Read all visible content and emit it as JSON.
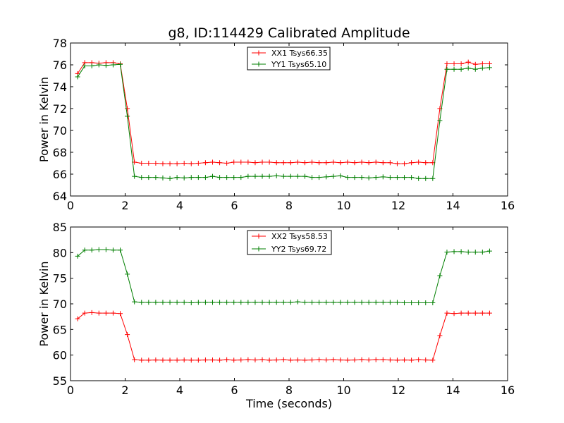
{
  "title": "g8, ID:114429 Calibrated Amplitude",
  "colors": {
    "red": "#ff0000",
    "green": "#007f00"
  },
  "chart_data": [
    {
      "type": "line",
      "title": "g8, ID:114429 Calibrated Amplitude",
      "xlabel": "",
      "ylabel": "Power in Kelvin",
      "xlim": [
        0,
        16
      ],
      "ylim": [
        64,
        78
      ],
      "xticks": [
        0,
        2,
        4,
        6,
        8,
        10,
        12,
        14,
        16
      ],
      "yticks": [
        64,
        66,
        68,
        70,
        72,
        74,
        76,
        78
      ],
      "x_tick_labels": [
        "0",
        "2",
        "4",
        "6",
        "8",
        "10",
        "12",
        "14",
        "16"
      ],
      "y_tick_labels": [
        "64",
        "66",
        "68",
        "70",
        "72",
        "74",
        "76",
        "78"
      ],
      "legend_position": "top-center",
      "grid": false,
      "x": [
        0.26,
        0.52,
        0.78,
        1.04,
        1.3,
        1.56,
        1.82,
        2.08,
        2.34,
        2.6,
        2.86,
        3.12,
        3.38,
        3.64,
        3.9,
        4.16,
        4.42,
        4.68,
        4.94,
        5.2,
        5.46,
        5.72,
        5.98,
        6.24,
        6.5,
        6.76,
        7.02,
        7.28,
        7.54,
        7.8,
        8.06,
        8.32,
        8.58,
        8.84,
        9.1,
        9.36,
        9.62,
        9.88,
        10.14,
        10.4,
        10.66,
        10.92,
        11.18,
        11.44,
        11.7,
        11.96,
        12.22,
        12.48,
        12.74,
        13.0,
        13.26,
        13.52,
        13.78,
        14.04,
        14.3,
        14.56,
        14.82,
        15.08,
        15.34
      ],
      "series": [
        {
          "name": "XX1 Tsys66.35",
          "color": "#ff0000",
          "values": [
            75.2,
            76.2,
            76.2,
            76.15,
            76.2,
            76.2,
            76.1,
            72.0,
            67.1,
            67.0,
            67.0,
            67.0,
            66.95,
            66.95,
            66.95,
            67.0,
            66.95,
            67.0,
            67.05,
            67.1,
            67.05,
            67.0,
            67.1,
            67.1,
            67.1,
            67.05,
            67.1,
            67.1,
            67.05,
            67.05,
            67.05,
            67.1,
            67.05,
            67.1,
            67.05,
            67.05,
            67.1,
            67.05,
            67.1,
            67.05,
            67.1,
            67.05,
            67.1,
            67.05,
            67.05,
            66.95,
            66.95,
            67.05,
            67.1,
            67.05,
            67.05,
            72.0,
            76.1,
            76.1,
            76.1,
            76.25,
            76.05,
            76.1,
            76.1
          ]
        },
        {
          "name": "YY1 Tsys65.10",
          "color": "#007f00",
          "values": [
            74.9,
            75.9,
            75.9,
            76.0,
            75.95,
            76.0,
            76.05,
            71.3,
            65.8,
            65.7,
            65.7,
            65.7,
            65.65,
            65.6,
            65.7,
            65.65,
            65.7,
            65.7,
            65.7,
            65.8,
            65.7,
            65.7,
            65.7,
            65.7,
            65.8,
            65.8,
            65.8,
            65.8,
            65.85,
            65.8,
            65.8,
            65.8,
            65.8,
            65.7,
            65.7,
            65.75,
            65.8,
            65.85,
            65.7,
            65.7,
            65.7,
            65.65,
            65.7,
            65.75,
            65.7,
            65.7,
            65.7,
            65.7,
            65.6,
            65.6,
            65.6,
            70.9,
            75.6,
            75.6,
            75.6,
            75.7,
            75.6,
            75.7,
            75.75
          ]
        }
      ]
    },
    {
      "type": "line",
      "title": "",
      "xlabel": "Time (seconds)",
      "ylabel": "Power in Kelvin",
      "xlim": [
        0,
        16
      ],
      "ylim": [
        55,
        85
      ],
      "xticks": [
        0,
        2,
        4,
        6,
        8,
        10,
        12,
        14,
        16
      ],
      "yticks": [
        55,
        60,
        65,
        70,
        75,
        80,
        85
      ],
      "x_tick_labels": [
        "0",
        "2",
        "4",
        "6",
        "8",
        "10",
        "12",
        "14",
        "16"
      ],
      "y_tick_labels": [
        "55",
        "60",
        "65",
        "70",
        "75",
        "80",
        "85"
      ],
      "legend_position": "top-center",
      "grid": false,
      "x": [
        0.26,
        0.52,
        0.78,
        1.04,
        1.3,
        1.56,
        1.82,
        2.08,
        2.34,
        2.6,
        2.86,
        3.12,
        3.38,
        3.64,
        3.9,
        4.16,
        4.42,
        4.68,
        4.94,
        5.2,
        5.46,
        5.72,
        5.98,
        6.24,
        6.5,
        6.76,
        7.02,
        7.28,
        7.54,
        7.8,
        8.06,
        8.32,
        8.58,
        8.84,
        9.1,
        9.36,
        9.62,
        9.88,
        10.14,
        10.4,
        10.66,
        10.92,
        11.18,
        11.44,
        11.7,
        11.96,
        12.22,
        12.48,
        12.74,
        13.0,
        13.26,
        13.52,
        13.78,
        14.04,
        14.3,
        14.56,
        14.82,
        15.08,
        15.34
      ],
      "series": [
        {
          "name": "XX2 Tsys58.53",
          "color": "#ff0000",
          "values": [
            67.1,
            68.2,
            68.3,
            68.2,
            68.2,
            68.2,
            68.1,
            64.0,
            59.1,
            59.0,
            59.0,
            59.05,
            59.0,
            59.0,
            59.0,
            59.05,
            59.0,
            59.0,
            59.05,
            59.05,
            59.0,
            59.1,
            59.0,
            59.05,
            59.1,
            59.05,
            59.1,
            59.0,
            59.05,
            59.1,
            59.0,
            59.05,
            59.0,
            59.05,
            59.1,
            59.05,
            59.1,
            59.05,
            59.0,
            59.05,
            59.1,
            59.05,
            59.1,
            59.1,
            59.05,
            59.0,
            59.05,
            59.0,
            59.1,
            59.05,
            59.0,
            63.8,
            68.2,
            68.1,
            68.2,
            68.2,
            68.2,
            68.2,
            68.2
          ]
        },
        {
          "name": "YY2 Tsys69.72",
          "color": "#007f00",
          "values": [
            79.3,
            80.5,
            80.5,
            80.6,
            80.6,
            80.5,
            80.5,
            75.8,
            70.4,
            70.3,
            70.3,
            70.3,
            70.3,
            70.3,
            70.3,
            70.3,
            70.2,
            70.3,
            70.3,
            70.3,
            70.3,
            70.3,
            70.3,
            70.3,
            70.3,
            70.3,
            70.3,
            70.3,
            70.3,
            70.3,
            70.3,
            70.4,
            70.3,
            70.3,
            70.3,
            70.3,
            70.3,
            70.3,
            70.3,
            70.3,
            70.3,
            70.3,
            70.3,
            70.3,
            70.3,
            70.3,
            70.2,
            70.2,
            70.2,
            70.2,
            70.2,
            75.5,
            80.1,
            80.2,
            80.2,
            80.1,
            80.1,
            80.1,
            80.3
          ]
        }
      ]
    }
  ]
}
